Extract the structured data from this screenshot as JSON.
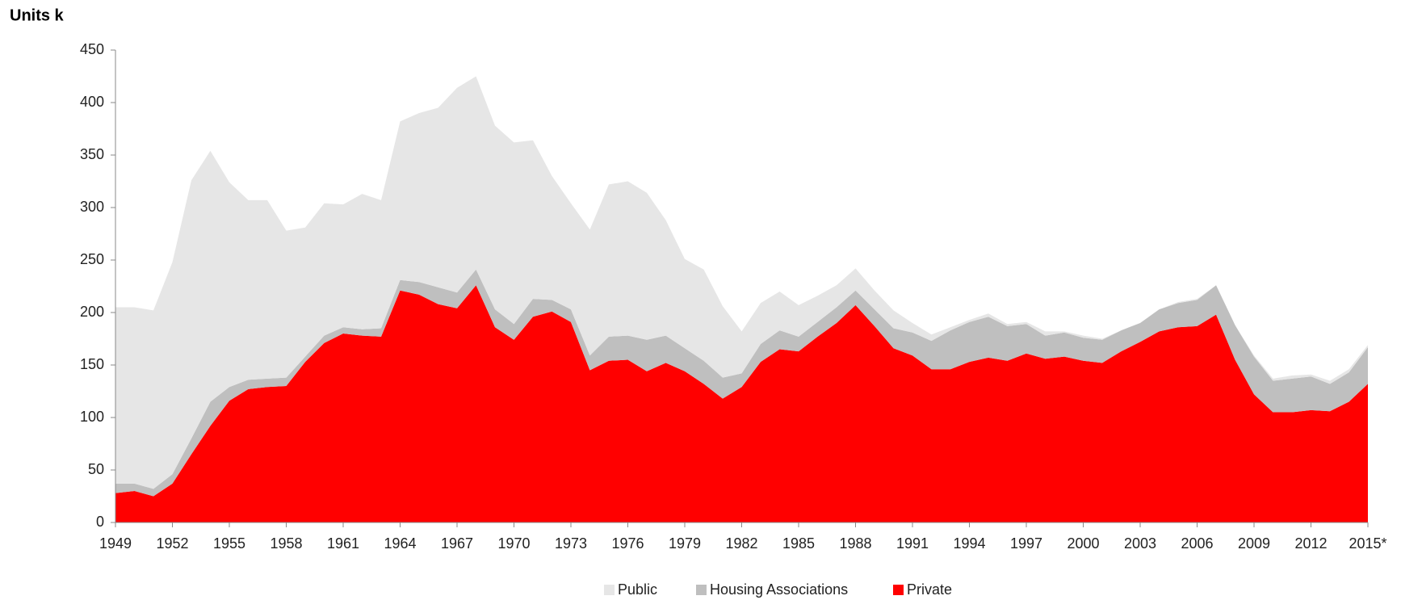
{
  "chart_data": {
    "type": "stacked_area",
    "ylabel": "Units k",
    "categories": [
      "1949",
      null,
      null,
      "1952",
      null,
      null,
      "1955",
      null,
      null,
      "1958",
      null,
      null,
      "1961",
      null,
      null,
      "1964",
      null,
      null,
      "1967",
      null,
      null,
      "1970",
      null,
      null,
      "1973",
      null,
      null,
      "1976",
      null,
      null,
      "1979",
      null,
      null,
      "1982",
      null,
      null,
      "1985",
      null,
      null,
      "1988",
      null,
      null,
      "1991",
      null,
      null,
      "1994",
      null,
      null,
      "1997",
      null,
      null,
      "2000",
      null,
      null,
      "2003",
      null,
      null,
      "2006",
      null,
      null,
      "2009",
      null,
      null,
      "2012",
      null,
      null,
      "2015*"
    ],
    "series": [
      {
        "name": "Public",
        "color": "#e6e6e6",
        "values": [
          168,
          168,
          170,
          202,
          246,
          239,
          195,
          171,
          170,
          140,
          123,
          126,
          117,
          129,
          122,
          151,
          161,
          171,
          195,
          184,
          175,
          173,
          151,
          118,
          101,
          120,
          145,
          147,
          140,
          110,
          85,
          87,
          68,
          40,
          39,
          37,
          30,
          25,
          21,
          21,
          18,
          17,
          9,
          6,
          3,
          2,
          3,
          2,
          2,
          4,
          1,
          2,
          1,
          0,
          0,
          0,
          1,
          1,
          0,
          0,
          1,
          2,
          3,
          2,
          3,
          3,
          2
        ]
      },
      {
        "name": "Housing Associations",
        "color": "#bfbfbf",
        "values": [
          9,
          7,
          7,
          9,
          15,
          23,
          13,
          9,
          8,
          8,
          5,
          7,
          6,
          6,
          8,
          10,
          12,
          16,
          15,
          15,
          17,
          15,
          17,
          11,
          12,
          14,
          23,
          23,
          30,
          26,
          22,
          22,
          20,
          13,
          17,
          18,
          14,
          14,
          15,
          14,
          16,
          19,
          22,
          27,
          37,
          38,
          39,
          33,
          28,
          22,
          23,
          22,
          22,
          20,
          18,
          21,
          23,
          25,
          28,
          33,
          36,
          30,
          32,
          32,
          26,
          28,
          35
        ]
      },
      {
        "name": "Private",
        "color": "#ff0000",
        "values": [
          28,
          30,
          25,
          37,
          65,
          92,
          116,
          127,
          129,
          130,
          153,
          171,
          180,
          178,
          177,
          221,
          217,
          208,
          204,
          226,
          186,
          174,
          196,
          201,
          191,
          145,
          154,
          155,
          144,
          152,
          144,
          132,
          118,
          129,
          153,
          165,
          163,
          177,
          190,
          207,
          187,
          166,
          159,
          146,
          146,
          153,
          157,
          154,
          161,
          156,
          158,
          154,
          152,
          163,
          172,
          182,
          186,
          187,
          198,
          155,
          122,
          105,
          105,
          107,
          106,
          115,
          132
        ]
      }
    ],
    "ylim": [
      0,
      450
    ],
    "yticks": [
      0,
      50,
      100,
      150,
      200,
      250,
      300,
      350,
      400,
      450
    ],
    "legend": "bottom"
  }
}
